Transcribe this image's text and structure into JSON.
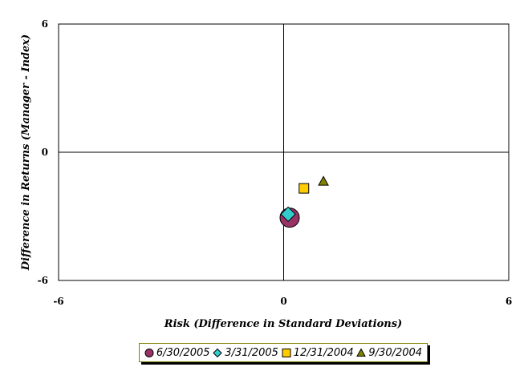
{
  "chart_data": {
    "type": "scatter",
    "title": "",
    "xlabel": "Risk (Difference in Standard Deviations)",
    "ylabel": "Difference in Returns (Manager - Index)",
    "xlim": [
      -6,
      6
    ],
    "ylim": [
      -6,
      6
    ],
    "xticks": [
      "-6",
      "0",
      "6"
    ],
    "yticks": [
      "6",
      "0",
      "-6"
    ],
    "grid": false,
    "legend_position": "bottom",
    "series": [
      {
        "name": "6/30/2005",
        "marker": "circle",
        "color": "#993366",
        "x": 0.16,
        "y": -3.06
      },
      {
        "name": "3/31/2005",
        "marker": "diamond",
        "color": "#33CCCC",
        "x": 0.12,
        "y": -2.9
      },
      {
        "name": "12/31/2004",
        "marker": "square",
        "color": "#FFCC00",
        "x": 0.54,
        "y": -1.69
      },
      {
        "name": "9/30/2004",
        "marker": "triangle",
        "color": "#808000",
        "x": 1.06,
        "y": -1.36
      }
    ]
  }
}
